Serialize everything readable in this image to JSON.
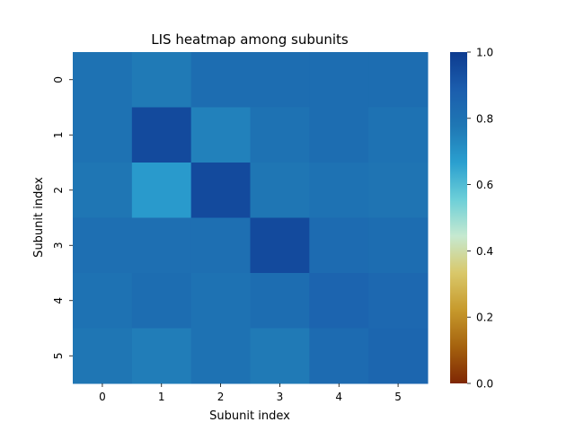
{
  "chart_data": {
    "type": "heatmap",
    "title": "LIS heatmap among subunits",
    "xlabel": "Subunit index",
    "ylabel": "Subunit index",
    "x_categories": [
      "0",
      "1",
      "2",
      "3",
      "4",
      "5"
    ],
    "y_categories": [
      "0",
      "1",
      "2",
      "3",
      "4",
      "5"
    ],
    "values": [
      [
        0.8,
        0.77,
        0.82,
        0.82,
        0.82,
        0.82
      ],
      [
        0.8,
        0.95,
        0.75,
        0.8,
        0.82,
        0.8
      ],
      [
        0.78,
        0.68,
        0.95,
        0.78,
        0.8,
        0.79
      ],
      [
        0.81,
        0.81,
        0.81,
        0.95,
        0.83,
        0.82
      ],
      [
        0.8,
        0.82,
        0.8,
        0.82,
        0.86,
        0.84
      ],
      [
        0.78,
        0.76,
        0.8,
        0.77,
        0.83,
        0.85
      ]
    ],
    "colorbar": {
      "min": 0.0,
      "max": 1.0,
      "ticks": [
        "0.0",
        "0.2",
        "0.4",
        "0.6",
        "0.8",
        "1.0"
      ]
    },
    "colormap": [
      "#7f2704",
      "#a5620e",
      "#c79a2c",
      "#d9c86a",
      "#c6e9d0",
      "#6ccfd8",
      "#2a9fcf",
      "#1f77b4",
      "#1b5dad",
      "#0d3b8f"
    ]
  }
}
